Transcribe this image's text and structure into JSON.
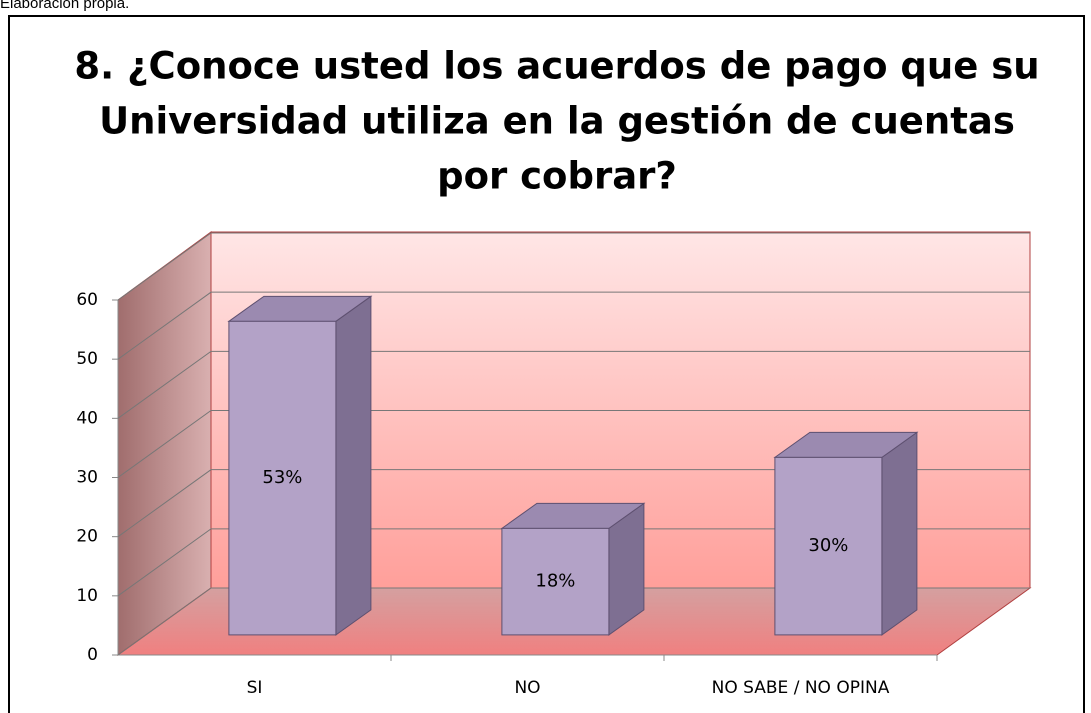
{
  "caption": "Elaboración propia.",
  "chart_data": {
    "type": "bar3d",
    "title": [
      "8. ¿Conoce usted los acuerdos de pago que su",
      "Universidad utiliza en la gestión de cuentas",
      "por cobrar?"
    ],
    "categories": [
      "SI",
      "NO",
      "NO SABE / NO OPINA"
    ],
    "values": [
      53,
      18,
      30
    ],
    "value_labels": [
      "53%",
      "18%",
      "30%"
    ],
    "color": "#b3a2c7",
    "ylim": [
      0,
      60
    ],
    "yticks": [
      0,
      10,
      20,
      30,
      40,
      50,
      60
    ],
    "grid": true
  }
}
